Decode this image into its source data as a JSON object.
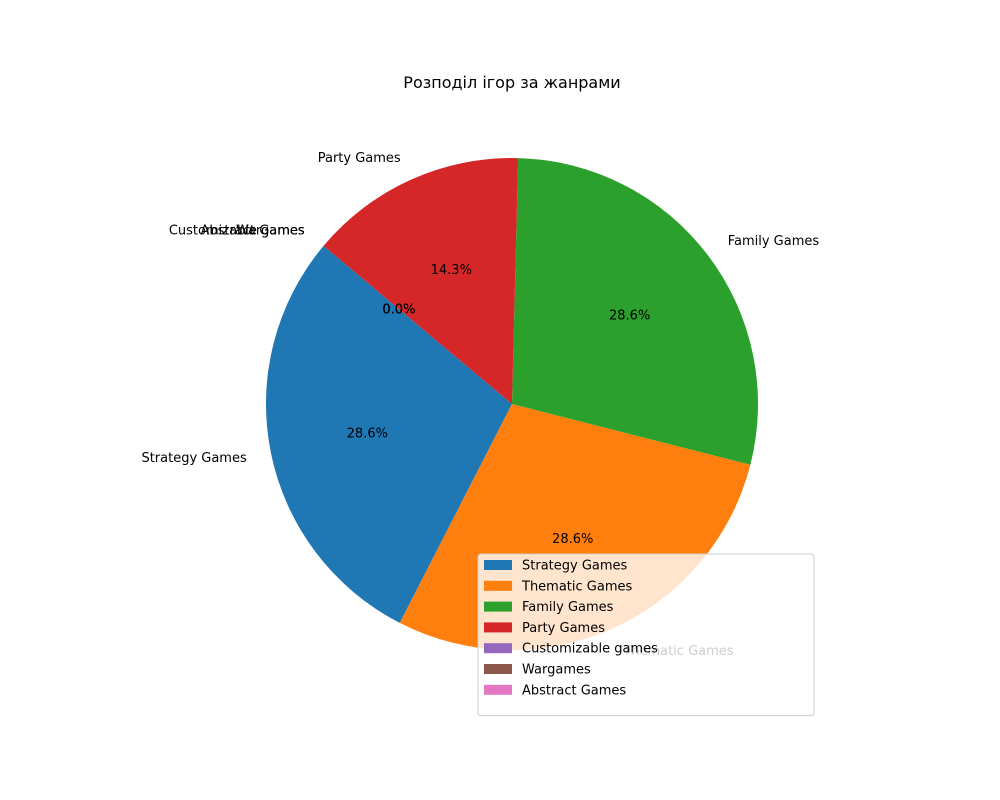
{
  "chart_data": {
    "type": "pie",
    "title": "Розподіл ігор за жанрами",
    "categories": [
      "Strategy Games",
      "Thematic Games",
      "Family Games",
      "Party Games",
      "Customizable games",
      "Wargames",
      "Abstract Games"
    ],
    "values": [
      2,
      2,
      2,
      1,
      0,
      0,
      0
    ],
    "percent_labels": [
      "28.6%",
      "28.6%",
      "28.6%",
      "14.3%",
      "0.0%",
      "0.0%",
      "0.0%"
    ],
    "colors": [
      "#1f77b4",
      "#ff7f0e",
      "#2ca02c",
      "#d62728",
      "#9467bd",
      "#8c564b",
      "#e377c2"
    ],
    "start_angle_deg": 140,
    "direction": "counterclockwise",
    "legend": {
      "placement": "lower-right",
      "entries": [
        "Strategy Games",
        "Thematic Games",
        "Family Games",
        "Party Games",
        "Customizable games",
        "Wargames",
        "Abstract Games"
      ]
    }
  }
}
